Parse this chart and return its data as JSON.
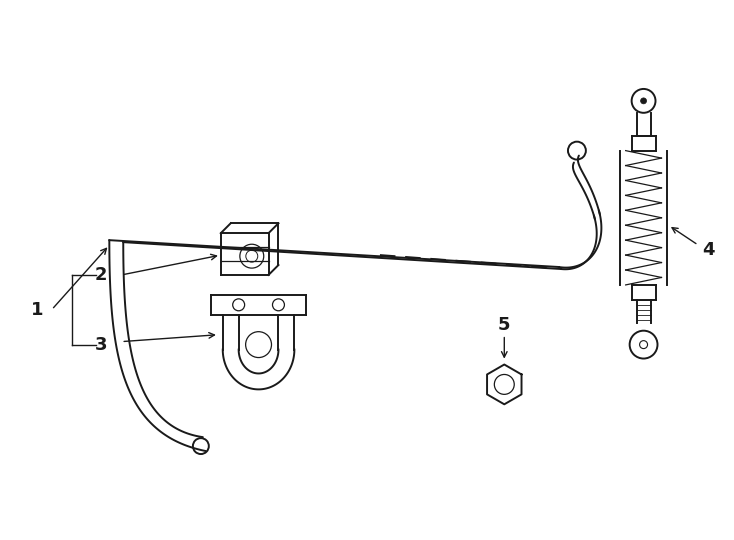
{
  "bg_color": "#ffffff",
  "line_color": "#1a1a1a",
  "line_width": 1.4,
  "fig_width": 7.34,
  "fig_height": 5.4,
  "dpi": 100
}
